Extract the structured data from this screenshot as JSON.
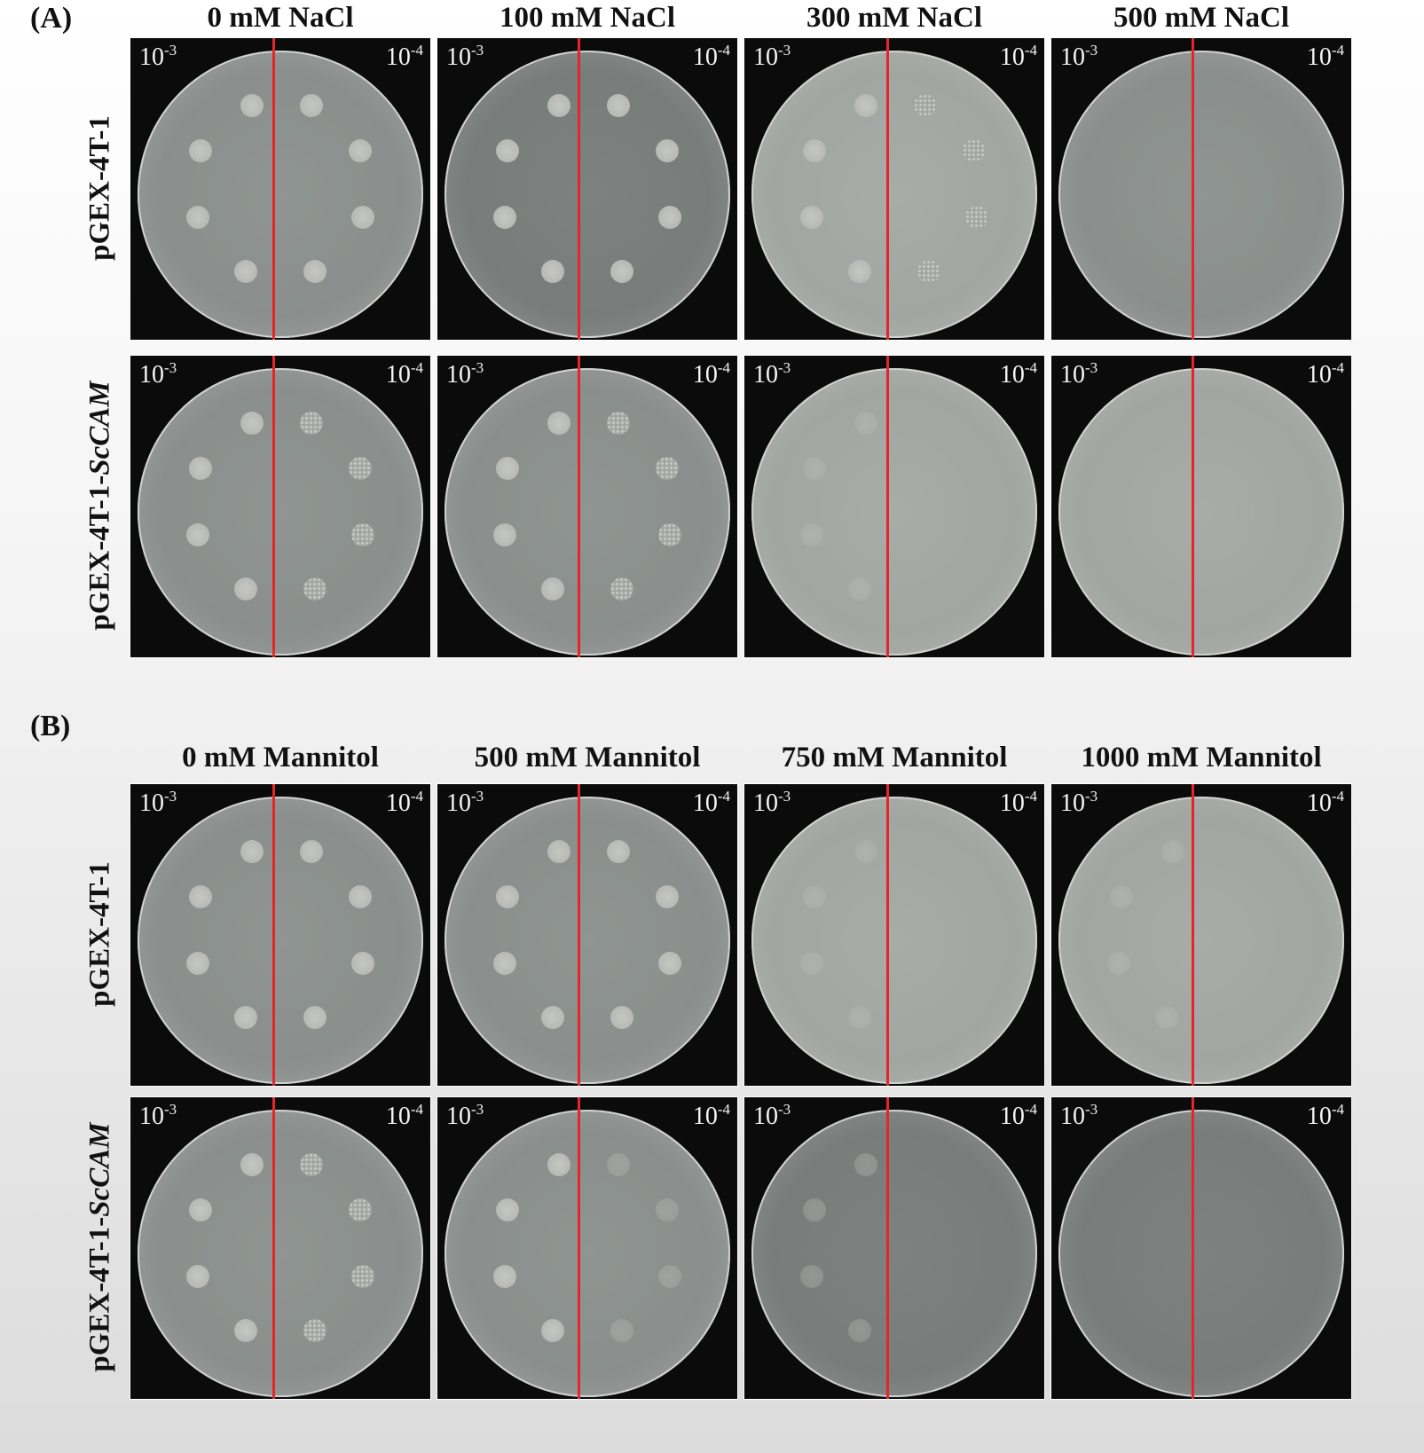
{
  "figure": {
    "sections": [
      {
        "label": "(A)",
        "columns": [
          "0 mM NaCl",
          "100 mM NaCl",
          "300 mM NaCl",
          "500 mM NaCl"
        ],
        "rows": [
          {
            "strain": "pGEX-4T-1",
            "strain_italic": "",
            "plates": [
              {
                "spots_1e-3": 4,
                "spots_1e-4": 4,
                "growth_1e-3": "strong",
                "growth_1e-4": "strong"
              },
              {
                "spots_1e-3": 4,
                "spots_1e-4": 4,
                "growth_1e-3": "strong",
                "growth_1e-4": "strong"
              },
              {
                "spots_1e-3": 4,
                "spots_1e-4": 4,
                "growth_1e-3": "strong",
                "growth_1e-4": "speckled"
              },
              {
                "spots_1e-3": 0,
                "spots_1e-4": 0,
                "growth_1e-3": "none",
                "growth_1e-4": "none"
              }
            ]
          },
          {
            "strain": "pGEX-4T-1-",
            "strain_italic": "ScCAM",
            "plates": [
              {
                "spots_1e-3": 4,
                "spots_1e-4": 4,
                "growth_1e-3": "strong",
                "growth_1e-4": "speckled"
              },
              {
                "spots_1e-3": 4,
                "spots_1e-4": 4,
                "growth_1e-3": "strong",
                "growth_1e-4": "speckled"
              },
              {
                "spots_1e-3": 4,
                "spots_1e-4": 0,
                "growth_1e-3": "faint",
                "growth_1e-4": "none"
              },
              {
                "spots_1e-3": 0,
                "spots_1e-4": 0,
                "growth_1e-3": "none",
                "growth_1e-4": "none"
              }
            ]
          }
        ]
      },
      {
        "label": "(B)",
        "columns": [
          "0 mM Mannitol",
          "500 mM Mannitol",
          "750 mM Mannitol",
          "1000 mM  Mannitol"
        ],
        "rows": [
          {
            "strain": "pGEX-4T-1",
            "strain_italic": "",
            "plates": [
              {
                "spots_1e-3": 4,
                "spots_1e-4": 4,
                "growth_1e-3": "strong",
                "growth_1e-4": "strong"
              },
              {
                "spots_1e-3": 4,
                "spots_1e-4": 4,
                "growth_1e-3": "strong",
                "growth_1e-4": "strong"
              },
              {
                "spots_1e-3": 4,
                "spots_1e-4": 0,
                "growth_1e-3": "faint",
                "growth_1e-4": "none"
              },
              {
                "spots_1e-3": 4,
                "spots_1e-4": 0,
                "growth_1e-3": "faint",
                "growth_1e-4": "none"
              }
            ]
          },
          {
            "strain": "pGEX-4T-1-",
            "strain_italic": "ScCAM",
            "plates": [
              {
                "spots_1e-3": 4,
                "spots_1e-4": 4,
                "growth_1e-3": "strong",
                "growth_1e-4": "speckled"
              },
              {
                "spots_1e-3": 4,
                "spots_1e-4": 4,
                "growth_1e-3": "strong",
                "growth_1e-4": "faint"
              },
              {
                "spots_1e-3": 4,
                "spots_1e-4": 0,
                "growth_1e-3": "faint",
                "growth_1e-4": "none"
              },
              {
                "spots_1e-3": 0,
                "spots_1e-4": 0,
                "growth_1e-3": "none",
                "growth_1e-4": "none"
              }
            ]
          }
        ]
      }
    ],
    "dilution_left": {
      "base": "10",
      "exp": "-3"
    },
    "dilution_right": {
      "base": "10",
      "exp": "-4"
    },
    "colors": {
      "divider": "#e4262a",
      "background": "#0b0b0b"
    }
  }
}
